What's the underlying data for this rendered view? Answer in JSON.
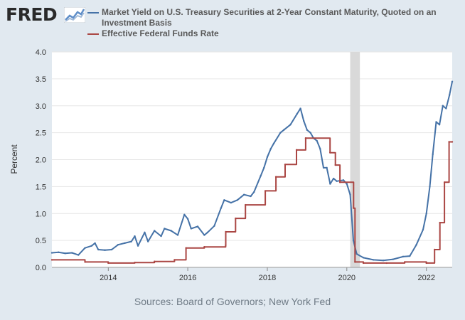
{
  "header": {
    "logo_text": "FRED",
    "logo_icon": "fred-logo-graph-icon"
  },
  "legend": {
    "items": [
      {
        "label": "Market Yield on U.S. Treasury Securities at 2-Year Constant Maturity, Quoted on an Investment Basis",
        "color": "#4572a7"
      },
      {
        "label": "Effective Federal Funds Rate",
        "color": "#aa4643"
      }
    ]
  },
  "source": "Sources: Board of Governors; New York Fed",
  "chart_data": {
    "type": "line",
    "title": "",
    "xlabel": "",
    "ylabel": "Percent",
    "xlim": [
      "2012-08-01",
      "2022-08-26"
    ],
    "ylim": [
      0,
      4.0
    ],
    "y_ticks": [
      "0.0",
      "0.5",
      "1.0",
      "1.5",
      "2.0",
      "2.5",
      "3.0",
      "3.5",
      "4.0"
    ],
    "x_ticks": [
      "2014",
      "2016",
      "2018",
      "2020",
      "2022"
    ],
    "grid": "horizontal",
    "legend_position": "top",
    "recession_shading": {
      "start": "2020-02-01",
      "end": "2020-04-30",
      "color": "#d9d9d9"
    },
    "series": [
      {
        "name": "Market Yield on U.S. Treasury Securities at 2-Year Constant Maturity, Quoted on an Investment Basis",
        "color": "#4572a7",
        "points": [
          [
            "2012-08-01",
            0.27
          ],
          [
            "2012-10-01",
            0.28
          ],
          [
            "2012-12-01",
            0.26
          ],
          [
            "2013-02-01",
            0.27
          ],
          [
            "2013-04-01",
            0.23
          ],
          [
            "2013-06-01",
            0.36
          ],
          [
            "2013-08-01",
            0.4
          ],
          [
            "2013-09-01",
            0.45
          ],
          [
            "2013-10-01",
            0.33
          ],
          [
            "2013-12-01",
            0.32
          ],
          [
            "2014-02-01",
            0.33
          ],
          [
            "2014-04-01",
            0.42
          ],
          [
            "2014-06-01",
            0.45
          ],
          [
            "2014-08-01",
            0.48
          ],
          [
            "2014-09-01",
            0.58
          ],
          [
            "2014-10-01",
            0.4
          ],
          [
            "2014-12-01",
            0.65
          ],
          [
            "2015-01-01",
            0.48
          ],
          [
            "2015-03-01",
            0.68
          ],
          [
            "2015-05-01",
            0.58
          ],
          [
            "2015-06-01",
            0.72
          ],
          [
            "2015-08-01",
            0.68
          ],
          [
            "2015-10-01",
            0.6
          ],
          [
            "2015-12-01",
            0.98
          ],
          [
            "2016-01-01",
            0.9
          ],
          [
            "2016-02-01",
            0.72
          ],
          [
            "2016-04-01",
            0.76
          ],
          [
            "2016-06-01",
            0.6
          ],
          [
            "2016-07-01",
            0.65
          ],
          [
            "2016-09-01",
            0.77
          ],
          [
            "2016-11-01",
            1.1
          ],
          [
            "2016-12-01",
            1.25
          ],
          [
            "2017-02-01",
            1.2
          ],
          [
            "2017-04-01",
            1.25
          ],
          [
            "2017-06-01",
            1.35
          ],
          [
            "2017-08-01",
            1.32
          ],
          [
            "2017-09-01",
            1.4
          ],
          [
            "2017-11-01",
            1.7
          ],
          [
            "2017-12-01",
            1.85
          ],
          [
            "2018-01-01",
            2.05
          ],
          [
            "2018-02-01",
            2.2
          ],
          [
            "2018-03-01",
            2.3
          ],
          [
            "2018-05-01",
            2.5
          ],
          [
            "2018-06-01",
            2.55
          ],
          [
            "2018-08-01",
            2.65
          ],
          [
            "2018-10-01",
            2.85
          ],
          [
            "2018-11-01",
            2.95
          ],
          [
            "2018-12-01",
            2.72
          ],
          [
            "2019-01-01",
            2.55
          ],
          [
            "2019-02-01",
            2.5
          ],
          [
            "2019-03-01",
            2.4
          ],
          [
            "2019-04-01",
            2.35
          ],
          [
            "2019-05-01",
            2.2
          ],
          [
            "2019-06-01",
            1.85
          ],
          [
            "2019-07-01",
            1.85
          ],
          [
            "2019-08-01",
            1.55
          ],
          [
            "2019-09-01",
            1.65
          ],
          [
            "2019-10-01",
            1.6
          ],
          [
            "2019-12-01",
            1.62
          ],
          [
            "2020-01-01",
            1.55
          ],
          [
            "2020-02-01",
            1.35
          ],
          [
            "2020-03-01",
            0.5
          ],
          [
            "2020-04-01",
            0.25
          ],
          [
            "2020-06-01",
            0.18
          ],
          [
            "2020-09-01",
            0.14
          ],
          [
            "2020-12-01",
            0.13
          ],
          [
            "2021-03-01",
            0.15
          ],
          [
            "2021-06-01",
            0.2
          ],
          [
            "2021-08-01",
            0.21
          ],
          [
            "2021-10-01",
            0.42
          ],
          [
            "2021-12-01",
            0.7
          ],
          [
            "2022-01-01",
            1.0
          ],
          [
            "2022-02-01",
            1.5
          ],
          [
            "2022-03-01",
            2.1
          ],
          [
            "2022-04-01",
            2.7
          ],
          [
            "2022-05-01",
            2.65
          ],
          [
            "2022-06-01",
            3.0
          ],
          [
            "2022-07-01",
            2.95
          ],
          [
            "2022-08-01",
            3.2
          ],
          [
            "2022-08-26",
            3.45
          ]
        ]
      },
      {
        "name": "Effective Federal Funds Rate",
        "color": "#aa4643",
        "points": [
          [
            "2012-08-01",
            0.14
          ],
          [
            "2013-06-01",
            0.1
          ],
          [
            "2014-01-01",
            0.08
          ],
          [
            "2014-09-01",
            0.09
          ],
          [
            "2015-03-01",
            0.11
          ],
          [
            "2015-09-01",
            0.14
          ],
          [
            "2015-12-16",
            0.36
          ],
          [
            "2016-06-01",
            0.38
          ],
          [
            "2016-12-14",
            0.41
          ],
          [
            "2016-12-15",
            0.66
          ],
          [
            "2017-03-15",
            0.91
          ],
          [
            "2017-06-14",
            1.16
          ],
          [
            "2017-12-13",
            1.42
          ],
          [
            "2018-03-21",
            1.68
          ],
          [
            "2018-06-13",
            1.91
          ],
          [
            "2018-09-26",
            2.18
          ],
          [
            "2018-12-19",
            2.4
          ],
          [
            "2019-07-31",
            2.13
          ],
          [
            "2019-09-18",
            1.9
          ],
          [
            "2019-10-30",
            1.58
          ],
          [
            "2020-03-03",
            1.1
          ],
          [
            "2020-03-16",
            0.1
          ],
          [
            "2020-06-01",
            0.08
          ],
          [
            "2021-01-01",
            0.08
          ],
          [
            "2021-06-16",
            0.1
          ],
          [
            "2022-01-01",
            0.08
          ],
          [
            "2022-03-17",
            0.33
          ],
          [
            "2022-05-05",
            0.83
          ],
          [
            "2022-06-16",
            1.58
          ],
          [
            "2022-07-28",
            2.33
          ],
          [
            "2022-08-26",
            2.33
          ]
        ]
      }
    ]
  }
}
